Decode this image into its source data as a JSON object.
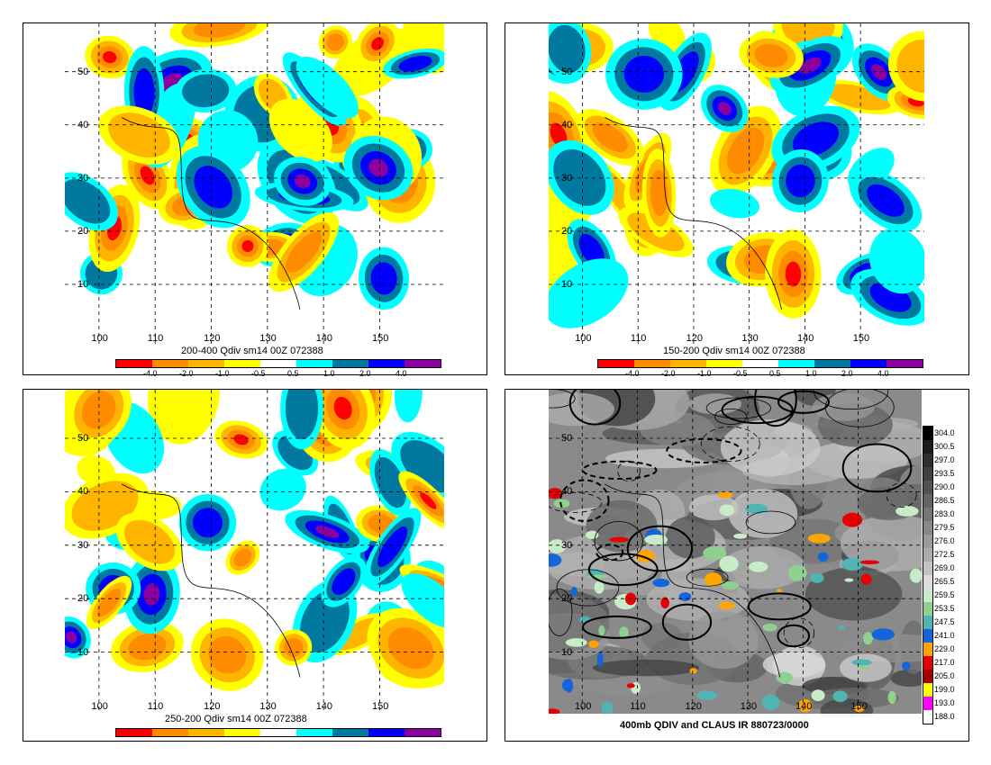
{
  "panels": [
    {
      "title": "200-400 Qdiv sm14 00Z 072388"
    },
    {
      "title": "150-200 Qdiv sm14 00Z 072388"
    },
    {
      "title": "250-200 Qdiv sm14 00Z 072388"
    },
    {
      "title": "400mb QDIV and CLAUS IR 880723/0000"
    }
  ],
  "lat_labels": [
    "50",
    "40",
    "30",
    "20",
    "10"
  ],
  "lon_labels": [
    "100",
    "110",
    "120",
    "130",
    "140",
    "150"
  ],
  "colorbar": {
    "colors": [
      "#ff0000",
      "#ff8c00",
      "#ffb400",
      "#ffff00",
      "#ffffff",
      "#00ffff",
      "#0078a0",
      "#0000ff",
      "#8c00a0"
    ],
    "ticks": [
      "-4.0",
      "-2.0",
      "-1.0",
      "-0.5",
      "0.5",
      "1.0",
      "2.0",
      "4.0"
    ]
  },
  "ir_colorbar": {
    "labels": [
      "304.0",
      "300.5",
      "297.0",
      "293.5",
      "290.0",
      "286.5",
      "283.0",
      "279.5",
      "276.0",
      "272.5",
      "269.0",
      "265.5",
      "259.5",
      "253.5",
      "247.5",
      "241.0",
      "229.0",
      "217.0",
      "205.0",
      "199.0",
      "193.0",
      "188.0"
    ],
    "colors": [
      "#000000",
      "#1a1a1a",
      "#2e2e2e",
      "#404040",
      "#525252",
      "#646464",
      "#767676",
      "#888888",
      "#9a9a9a",
      "#acacac",
      "#c4c4c4",
      "#dcdcdc",
      "#c8ecc8",
      "#8ed08e",
      "#50b4b4",
      "#1464dc",
      "#ffa500",
      "#e60000",
      "#a00000",
      "#ffff00",
      "#ff00ff",
      "#ffffff"
    ]
  }
}
